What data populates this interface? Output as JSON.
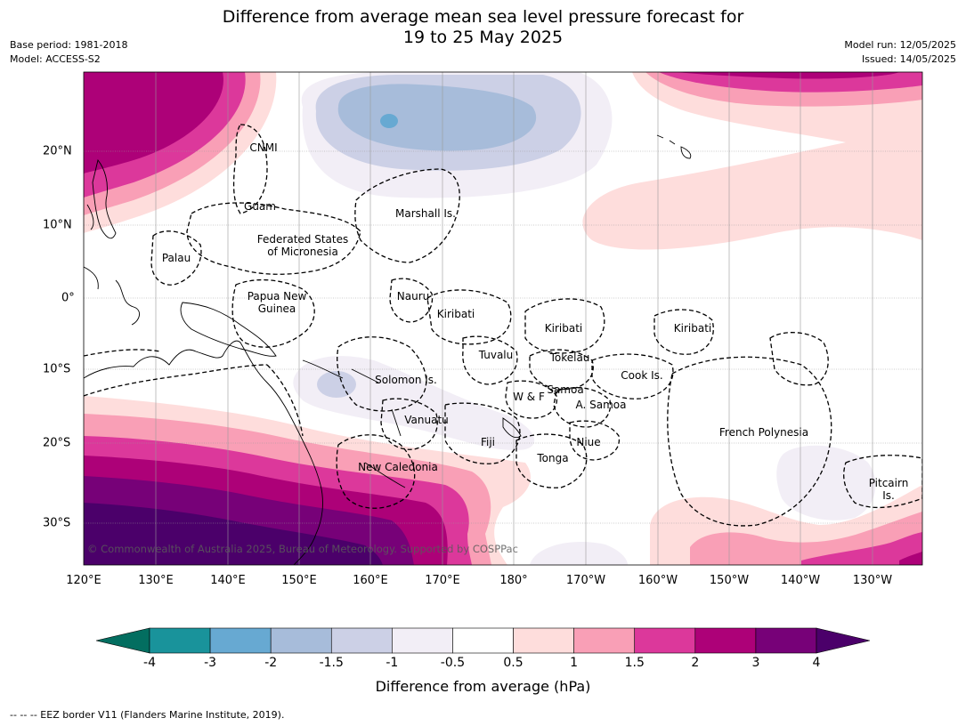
{
  "title_line1": "Difference from average mean sea level pressure forecast for",
  "title_line2": "19 to 25 May 2025",
  "base_period": "Base period: 1981-2018",
  "model": "Model: ACCESS-S2",
  "model_run": "Model run: 12/05/2025",
  "issued": "Issued: 14/05/2025",
  "lon_labels": [
    "120°E",
    "130°E",
    "140°E",
    "150°E",
    "160°E",
    "170°E",
    "180°",
    "170°W",
    "160°W",
    "150°W",
    "140°W",
    "130°W"
  ],
  "lat_labels": [
    "20°N",
    "10°N",
    "0°",
    "10°S",
    "20°S",
    "30°S"
  ],
  "places": {
    "cnmi": "CNMI",
    "guam": "Guam",
    "marshall": "Marshall Is.",
    "fsm1": "Federated States",
    "fsm2": "of Micronesia",
    "palau": "Palau",
    "png1": "Papua New",
    "png2": "Guinea",
    "nauru": "Nauru",
    "kiribati_w": "Kiribati",
    "kiribati_c": "Kiribati",
    "kiribati_e": "Kiribati",
    "tuvalu": "Tuvalu",
    "tokelau": "Tokelau",
    "cook": "Cook Is.",
    "solomon": "Solomon Is.",
    "samoa": "Samoa",
    "wf": "W & F",
    "asamoa": "A. Samoa",
    "vanuatu": "Vanuatu",
    "fiji": "Fiji",
    "niue": "Niue",
    "tonga": "Tonga",
    "frpoly": "French Polynesia",
    "newcal": "New Caledonia",
    "pitcairn1": "Pitcairn",
    "pitcairn2": "Is."
  },
  "copyright": "© Commonwealth of Australia 2025, Bureau of Meteorology. Supported by COSPPac",
  "colorbar": {
    "label": "Difference from average (hPa)",
    "ticks": [
      "-4",
      "-3",
      "-2",
      "-1.5",
      "-1",
      "-0.5",
      "0.5",
      "1",
      "1.5",
      "2",
      "3",
      "4"
    ],
    "colors": [
      "#036e60",
      "#19939b",
      "#67a9d2",
      "#a7bcda",
      "#ccd0e6",
      "#f2eef6",
      "#ffffff",
      "#fedddc",
      "#f99fb6",
      "#dc389b",
      "#ad0178",
      "#770178",
      "#4b006a"
    ]
  },
  "footnote": "-- -- -- EEZ border V11 (Flanders Marine Institute, 2019)."
}
